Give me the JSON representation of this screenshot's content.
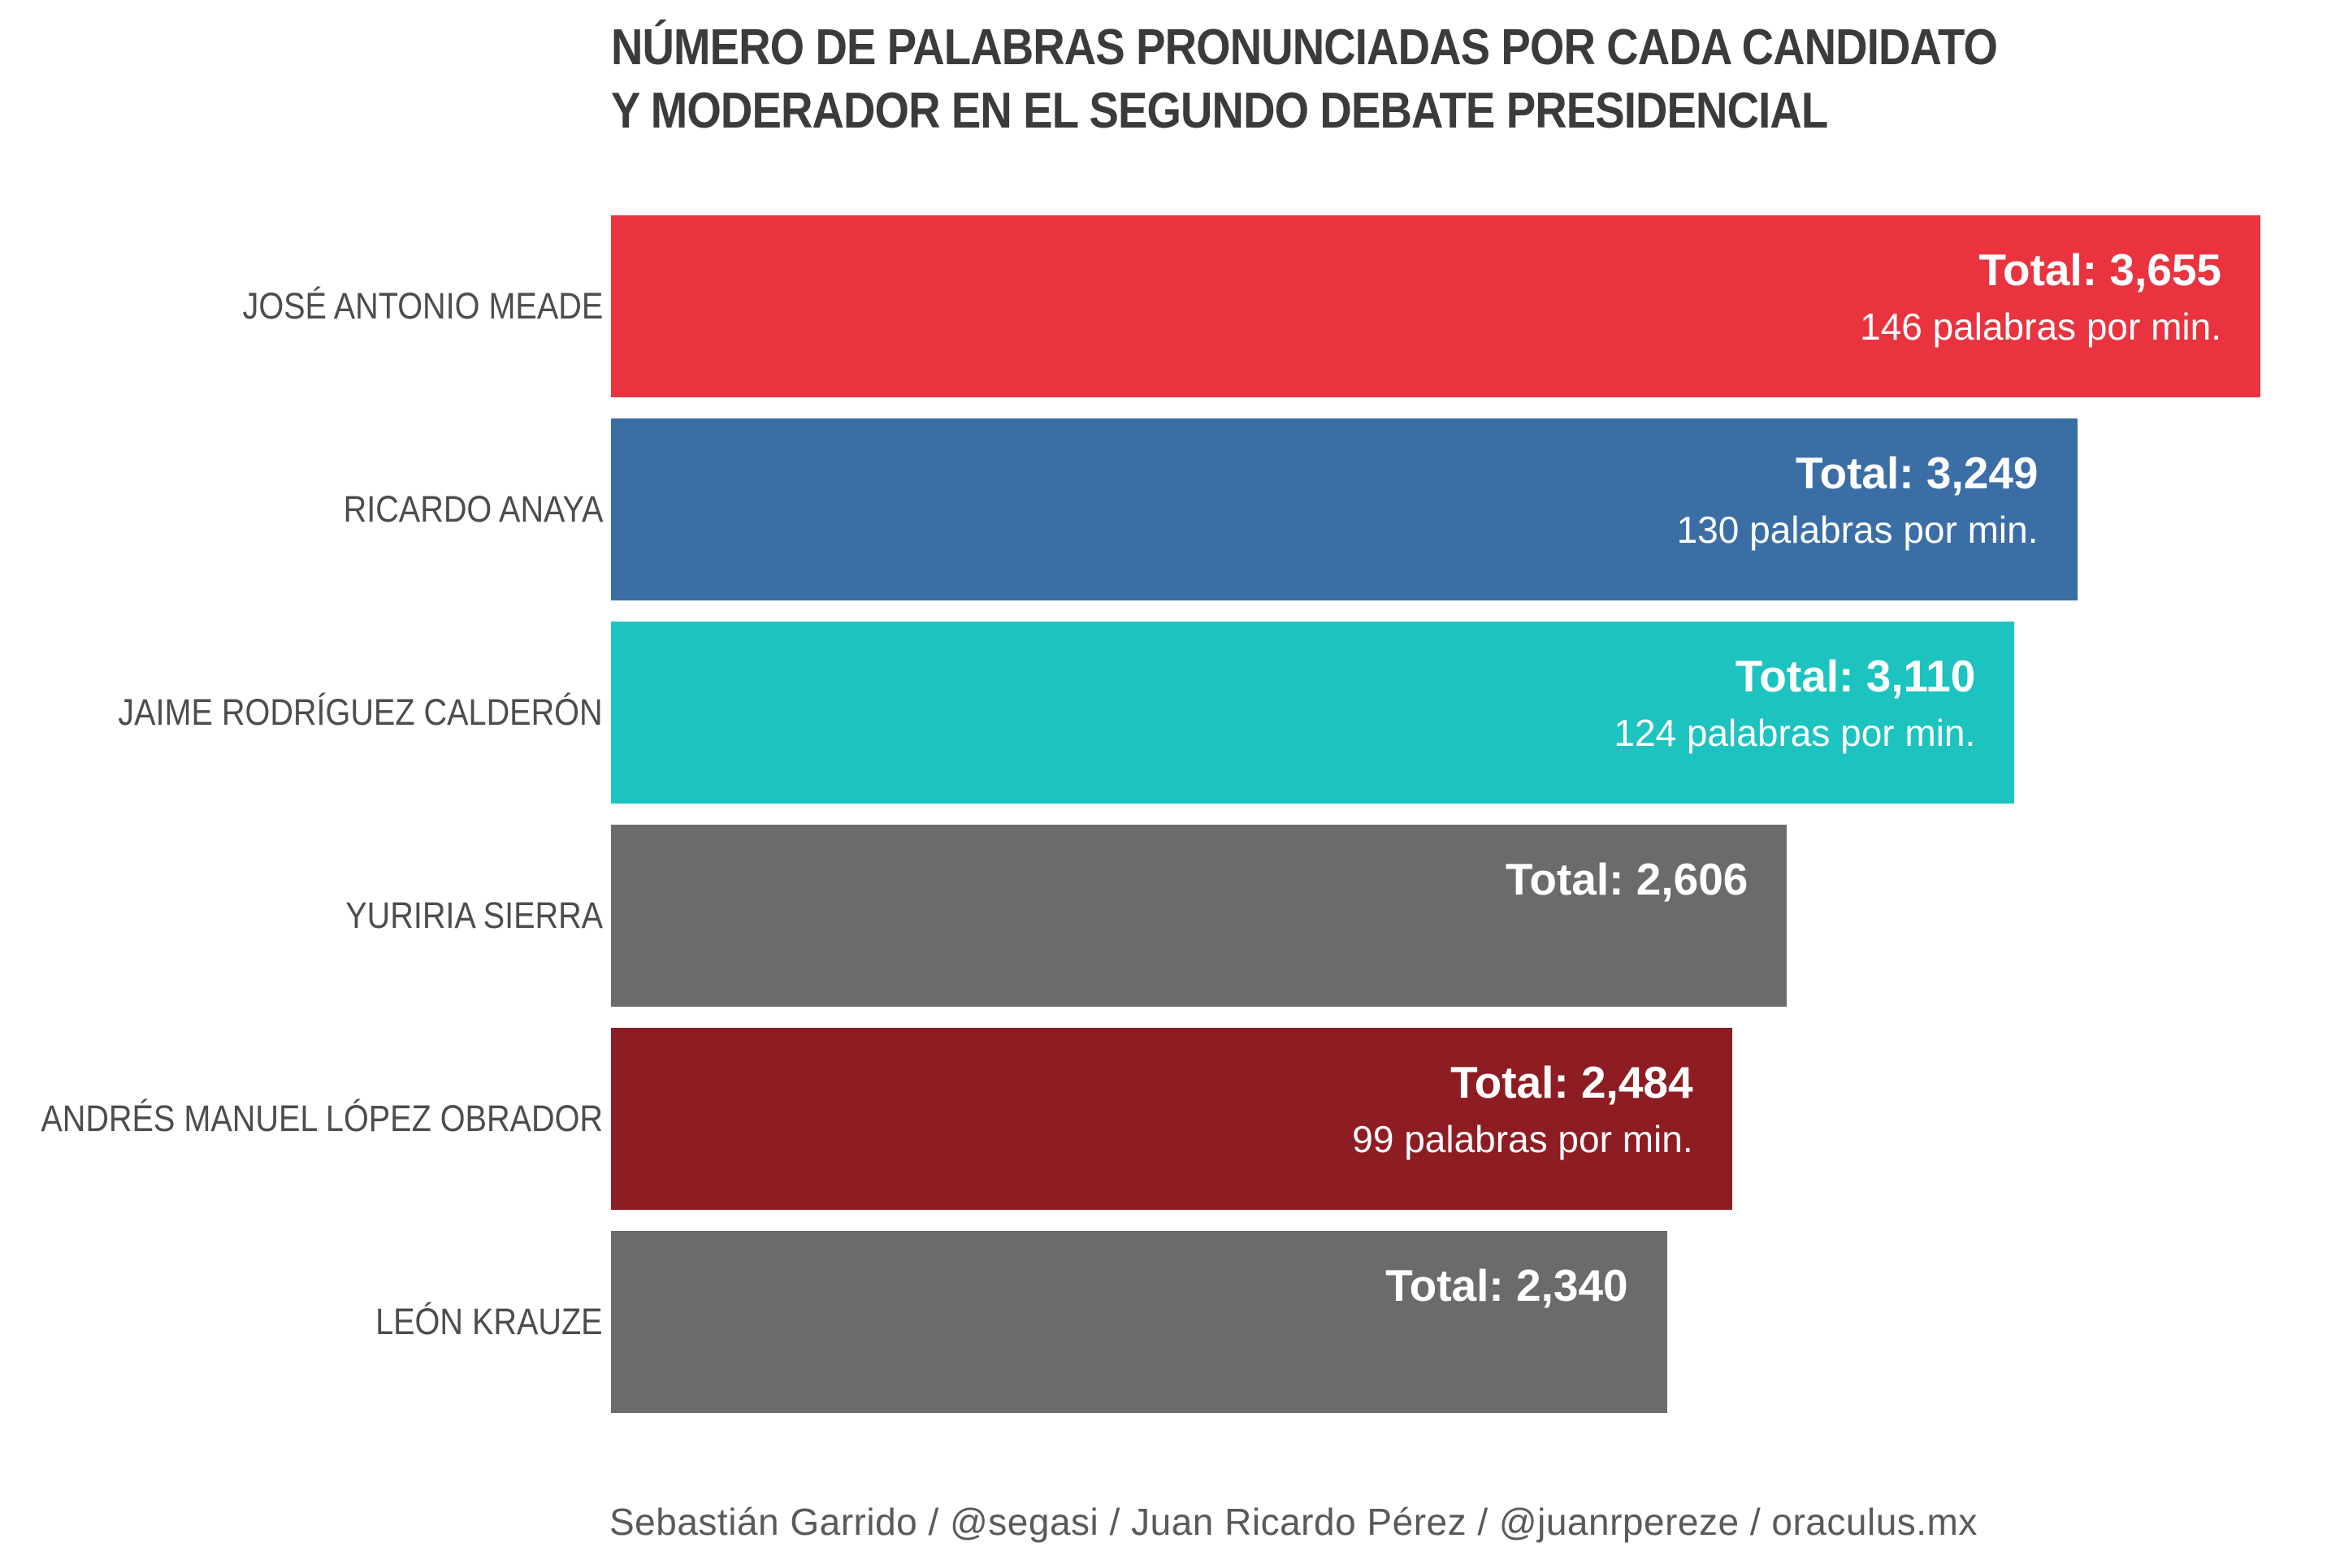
{
  "title": {
    "line1": "NÚMERO DE PALABRAS PRONUNCIADAS POR CADA CANDIDATO",
    "line2": "Y MODERADOR EN EL SEGUNDO DEBATE PRESIDENCIAL"
  },
  "footer": {
    "credit": "Sebastián Garrido / @segasi / Juan Ricardo Pérez / @juanrpereze / oraculus.mx"
  },
  "chart_data": {
    "type": "bar",
    "orientation": "horizontal",
    "title": "NÚMERO DE PALABRAS PRONUNCIADAS POR CADA CANDIDATO Y MODERADOR EN EL SEGUNDO DEBATE PRESIDENCIAL",
    "source": "Sebastián Garrido / @segasi / Juan Ricardo Pérez / @juanrpereze / oraculus.mx",
    "xlim": [
      0,
      3655
    ],
    "grid": false,
    "value_axis_visible": false,
    "legend": "none",
    "categories": [
      "JOSÉ ANTONIO MEADE",
      "RICARDO ANAYA",
      "JAIME RODRÍGUEZ CALDERÓN",
      "YURIRIA SIERRA",
      "ANDRÉS MANUEL LÓPEZ OBRADOR",
      "LEÓN KRAUZE"
    ],
    "values": [
      3655,
      3249,
      3110,
      2606,
      2484,
      2340
    ],
    "words_per_min": [
      146,
      130,
      124,
      null,
      99,
      null
    ],
    "bar_colors": [
      "#E9333F",
      "#3A6EA5",
      "#1DC3BF",
      "#6B6B6B",
      "#8E1C23",
      "#6B6B6B"
    ],
    "text_color_on_bars": "#FFFFFF",
    "bars": [
      {
        "label": "JOSÉ ANTONIO MEADE",
        "total": 3655,
        "total_label": "Total: 3,655",
        "rate_label": "146 palabras por min.",
        "color": "#E9333F"
      },
      {
        "label": "RICARDO ANAYA",
        "total": 3249,
        "total_label": "Total: 3,249",
        "rate_label": "130 palabras por min.",
        "color": "#3A6EA5"
      },
      {
        "label": "JAIME RODRÍGUEZ CALDERÓN",
        "total": 3110,
        "total_label": "Total: 3,110",
        "rate_label": "124 palabras por min.",
        "color": "#1DC3BF"
      },
      {
        "label": "YURIRIA SIERRA",
        "total": 2606,
        "total_label": "Total: 2,606",
        "rate_label": "",
        "color": "#6B6B6B"
      },
      {
        "label": "ANDRÉS MANUEL LÓPEZ OBRADOR",
        "total": 2484,
        "total_label": "Total: 2,484",
        "rate_label": "99 palabras por min.",
        "color": "#8E1C23"
      },
      {
        "label": "LEÓN KRAUZE",
        "total": 2340,
        "total_label": "Total: 2,340",
        "rate_label": "",
        "color": "#6B6B6B"
      }
    ]
  }
}
